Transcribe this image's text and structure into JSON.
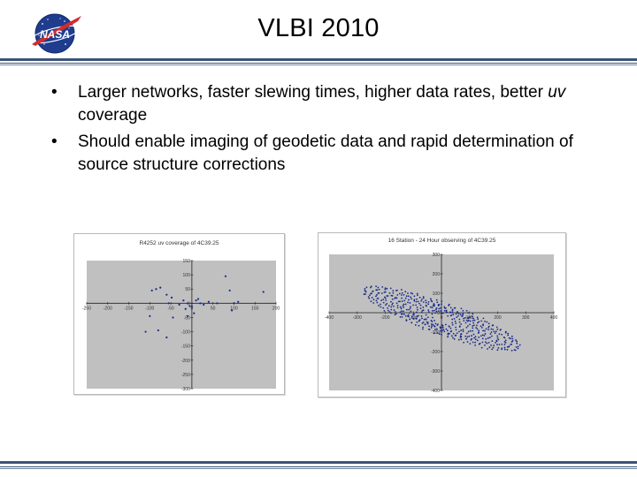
{
  "slide": {
    "title": "VLBI 2010",
    "logo_text": "NASA",
    "accent_color": "#3b5476"
  },
  "bullets": [
    {
      "parts": [
        {
          "text": "Larger networks, faster slewing times, higher data rates, better ",
          "italic": false
        },
        {
          "text": "uv",
          "italic": true
        },
        {
          "text": " coverage",
          "italic": false
        }
      ]
    },
    {
      "parts": [
        {
          "text": "Should enable imaging of geodetic data and rapid determination of source structure corrections",
          "italic": false
        }
      ]
    }
  ],
  "chart_data": [
    {
      "type": "scatter",
      "title": "R4252 uv coverage of 4C39.25",
      "xlim": [
        -250,
        200
      ],
      "ylim": [
        -300,
        150
      ],
      "x_ticks": [
        -250,
        -200,
        -150,
        -100,
        -50,
        0,
        50,
        100,
        150,
        200
      ],
      "y_ticks": [
        150,
        100,
        50,
        0,
        -50,
        -100,
        -150,
        -200,
        -250,
        -300
      ],
      "x": [
        -95,
        -85,
        -75,
        -60,
        -55,
        -48,
        -30,
        -20,
        -15,
        -10,
        -5,
        0,
        10,
        15,
        20,
        28,
        40,
        60,
        80,
        90,
        100,
        110,
        170,
        95,
        -110,
        -100,
        -80,
        -60,
        -45,
        -10,
        5
      ],
      "y": [
        45,
        50,
        55,
        30,
        0,
        20,
        -5,
        10,
        -20,
        0,
        -10,
        -10,
        10,
        15,
        0,
        -5,
        5,
        0,
        95,
        45,
        0,
        5,
        40,
        -25,
        -100,
        -45,
        -95,
        -120,
        -50,
        -45,
        -35
      ],
      "point_color": "#1a2a8a",
      "grid": false
    },
    {
      "type": "scatter",
      "title": "16 Station - 24 Hour observing of 4C39.25",
      "xlim": [
        -400,
        400
      ],
      "ylim": [
        -400,
        300
      ],
      "x_ticks": [
        -400,
        -300,
        -200,
        -100,
        0,
        100,
        200,
        300,
        400
      ],
      "y_ticks": [
        300,
        200,
        100,
        0,
        -100,
        -200,
        -300,
        -400
      ],
      "point_color": "#1a2a8a",
      "grid": false
    }
  ]
}
